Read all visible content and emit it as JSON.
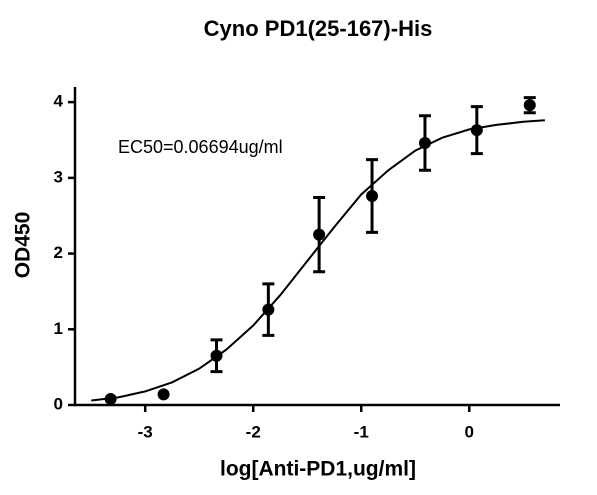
{
  "chart_data": {
    "type": "scatter",
    "title": "Cyno PD1(25-167)-His",
    "x_label": "log[Anti-PD1,ug/ml]",
    "y_label": "OD450",
    "annotation": "EC50=0.06694ug/ml",
    "x": [
      -3.32,
      -2.83,
      -2.34,
      -1.86,
      -1.39,
      -0.9,
      -0.41,
      0.07,
      0.56
    ],
    "values": [
      0.08,
      0.14,
      0.65,
      1.26,
      2.25,
      2.76,
      3.46,
      3.63,
      3.96
    ],
    "errors": [
      null,
      null,
      0.21,
      0.34,
      0.49,
      0.48,
      0.36,
      0.31,
      0.1
    ],
    "color": "#000000",
    "curve": {
      "x": [
        -3.5,
        -3.25,
        -3,
        -2.75,
        -2.5,
        -2.25,
        -2,
        -1.75,
        -1.5,
        -1.25,
        -1,
        -0.75,
        -0.5,
        -0.25,
        0,
        0.25,
        0.5,
        0.7
      ],
      "values": [
        0.06,
        0.1,
        0.18,
        0.3,
        0.48,
        0.73,
        1.05,
        1.45,
        1.9,
        2.35,
        2.78,
        3.1,
        3.36,
        3.53,
        3.64,
        3.7,
        3.74,
        3.76
      ]
    },
    "xlim": [
      -3.65,
      0.84
    ],
    "ylim": [
      0,
      4.2
    ],
    "xticks": [
      -3,
      -2,
      -1,
      0
    ],
    "yticks": [
      0,
      1,
      2,
      3,
      4
    ]
  }
}
